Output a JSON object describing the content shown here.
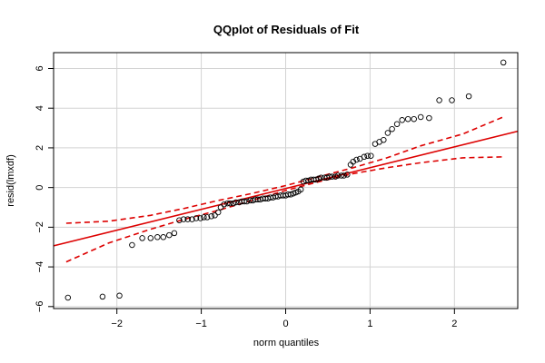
{
  "chart_data": {
    "type": "scatter",
    "title": "QQplot of Residuals of Fit",
    "xlabel": "norm quantiles",
    "ylabel": "resid(lmxdf)",
    "xlim": [
      -2.75,
      2.75
    ],
    "ylim": [
      -6.1,
      6.8
    ],
    "xticks": [
      -2,
      -1,
      0,
      1,
      2
    ],
    "yticks": [
      -6,
      -4,
      -2,
      0,
      2,
      4,
      6
    ],
    "xtick_labels": [
      "−2",
      "−1",
      "0",
      "1",
      "2"
    ],
    "ytick_labels": [
      "−6",
      "−4",
      "−2",
      "0",
      "2",
      "4",
      "6"
    ],
    "grid": true,
    "colors": {
      "points": "#000000",
      "line": "#dd0000",
      "grid": "#d3d3d3",
      "frame": "#000000"
    },
    "reference_line": {
      "slope": 1.05,
      "intercept": -0.05
    },
    "confidence_band": {
      "x": [
        -2.6,
        -2.1,
        -1.6,
        -1.2,
        -0.8,
        -0.4,
        0,
        0.4,
        0.8,
        1.2,
        1.6,
        2.1,
        2.6
      ],
      "lower": [
        -3.75,
        -2.8,
        -2.1,
        -1.6,
        -1.15,
        -0.65,
        -0.15,
        0.3,
        0.7,
        1.0,
        1.25,
        1.5,
        1.55
      ],
      "upper": [
        -1.8,
        -1.7,
        -1.4,
        -1.05,
        -0.65,
        -0.3,
        0.1,
        0.55,
        1.0,
        1.5,
        2.1,
        2.7,
        3.6
      ]
    },
    "points": [
      [
        -2.58,
        -5.55
      ],
      [
        -2.17,
        -5.5
      ],
      [
        -1.97,
        -5.45
      ],
      [
        -1.82,
        -2.9
      ],
      [
        -1.7,
        -2.55
      ],
      [
        -1.6,
        -2.55
      ],
      [
        -1.52,
        -2.5
      ],
      [
        -1.45,
        -2.5
      ],
      [
        -1.38,
        -2.4
      ],
      [
        -1.32,
        -2.3
      ],
      [
        -1.26,
        -1.65
      ],
      [
        -1.21,
        -1.6
      ],
      [
        -1.16,
        -1.6
      ],
      [
        -1.11,
        -1.6
      ],
      [
        -1.06,
        -1.55
      ],
      [
        -1.01,
        -1.55
      ],
      [
        -0.97,
        -1.5
      ],
      [
        -0.93,
        -1.5
      ],
      [
        -0.88,
        -1.45
      ],
      [
        -0.84,
        -1.4
      ],
      [
        -0.8,
        -1.25
      ],
      [
        -0.77,
        -1.0
      ],
      [
        -0.73,
        -0.85
      ],
      [
        -0.69,
        -0.8
      ],
      [
        -0.66,
        -0.8
      ],
      [
        -0.62,
        -0.8
      ],
      [
        -0.59,
        -0.75
      ],
      [
        -0.55,
        -0.75
      ],
      [
        -0.52,
        -0.7
      ],
      [
        -0.49,
        -0.7
      ],
      [
        -0.46,
        -0.7
      ],
      [
        -0.42,
        -0.65
      ],
      [
        -0.39,
        -0.65
      ],
      [
        -0.36,
        -0.6
      ],
      [
        -0.33,
        -0.6
      ],
      [
        -0.3,
        -0.6
      ],
      [
        -0.27,
        -0.55
      ],
      [
        -0.24,
        -0.55
      ],
      [
        -0.21,
        -0.55
      ],
      [
        -0.18,
        -0.5
      ],
      [
        -0.15,
        -0.5
      ],
      [
        -0.12,
        -0.45
      ],
      [
        -0.09,
        -0.45
      ],
      [
        -0.06,
        -0.4
      ],
      [
        -0.03,
        -0.4
      ],
      [
        0.0,
        -0.4
      ],
      [
        0.03,
        -0.35
      ],
      [
        0.06,
        -0.35
      ],
      [
        0.09,
        -0.3
      ],
      [
        0.12,
        -0.25
      ],
      [
        0.15,
        -0.2
      ],
      [
        0.18,
        -0.1
      ],
      [
        0.21,
        0.3
      ],
      [
        0.24,
        0.35
      ],
      [
        0.27,
        0.35
      ],
      [
        0.3,
        0.4
      ],
      [
        0.33,
        0.4
      ],
      [
        0.36,
        0.4
      ],
      [
        0.39,
        0.45
      ],
      [
        0.42,
        0.5
      ],
      [
        0.46,
        0.5
      ],
      [
        0.49,
        0.5
      ],
      [
        0.52,
        0.55
      ],
      [
        0.55,
        0.55
      ],
      [
        0.59,
        0.55
      ],
      [
        0.62,
        0.6
      ],
      [
        0.66,
        0.6
      ],
      [
        0.69,
        0.6
      ],
      [
        0.73,
        0.65
      ],
      [
        0.77,
        1.15
      ],
      [
        0.8,
        1.3
      ],
      [
        0.84,
        1.4
      ],
      [
        0.88,
        1.45
      ],
      [
        0.93,
        1.55
      ],
      [
        0.97,
        1.6
      ],
      [
        1.01,
        1.6
      ],
      [
        1.06,
        2.2
      ],
      [
        1.11,
        2.3
      ],
      [
        1.16,
        2.4
      ],
      [
        1.21,
        2.75
      ],
      [
        1.26,
        2.95
      ],
      [
        1.32,
        3.2
      ],
      [
        1.38,
        3.4
      ],
      [
        1.45,
        3.45
      ],
      [
        1.52,
        3.45
      ],
      [
        1.6,
        3.55
      ],
      [
        1.7,
        3.5
      ],
      [
        1.82,
        4.4
      ],
      [
        1.97,
        4.4
      ],
      [
        2.17,
        4.6
      ],
      [
        2.58,
        6.3
      ]
    ]
  }
}
